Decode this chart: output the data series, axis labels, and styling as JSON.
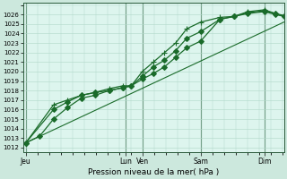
{
  "title": "",
  "xlabel": "Pression niveau de la mer( hPa )",
  "ylabel": "",
  "bg_color": "#cce8dd",
  "plot_bg_color": "#ddf5ee",
  "grid_color": "#b0d8c8",
  "line_color": "#1a6b2a",
  "vline_color": "#2a5a3a",
  "ylim_min": 1011.5,
  "ylim_max": 1027.2,
  "yticks": [
    1012,
    1013,
    1014,
    1015,
    1016,
    1017,
    1018,
    1019,
    1020,
    1021,
    1022,
    1023,
    1024,
    1025,
    1026
  ],
  "xtick_labels": [
    "Jeu",
    "Lun",
    "Ven",
    "Sam",
    "Dim"
  ],
  "xtick_positions": [
    0.0,
    3.6,
    4.2,
    6.3,
    8.6
  ],
  "xlim_min": -0.1,
  "xlim_max": 9.3,
  "series": [
    {
      "x": [
        0.0,
        0.5,
        1.0,
        1.5,
        2.0,
        2.5,
        3.0,
        3.5,
        3.8,
        4.2,
        4.6,
        5.0,
        5.4,
        5.8,
        6.3,
        7.0,
        7.5,
        8.0,
        8.6,
        9.0,
        9.3
      ],
      "y": [
        1012.5,
        1013.2,
        1015.0,
        1016.2,
        1017.2,
        1017.5,
        1018.0,
        1018.3,
        1018.5,
        1019.2,
        1019.8,
        1020.5,
        1021.5,
        1022.5,
        1023.2,
        1025.5,
        1025.8,
        1026.1,
        1026.3,
        1026.0,
        1025.8
      ],
      "marker": "D",
      "markersize": 3,
      "lw": 0.9,
      "markevery": 1
    },
    {
      "x": [
        0.0,
        1.0,
        1.5,
        2.0,
        2.5,
        3.0,
        3.5,
        3.8,
        4.2,
        4.6,
        5.0,
        5.4,
        5.8,
        6.3,
        7.0,
        7.5,
        8.0,
        8.6,
        9.0,
        9.3
      ],
      "y": [
        1012.5,
        1016.0,
        1016.8,
        1017.5,
        1017.8,
        1018.0,
        1018.3,
        1018.5,
        1019.5,
        1020.5,
        1021.2,
        1022.2,
        1023.5,
        1024.2,
        1025.5,
        1025.8,
        1026.2,
        1026.4,
        1026.1,
        1025.8
      ],
      "marker": "D",
      "markersize": 3,
      "lw": 0.9,
      "markevery": 1
    },
    {
      "x": [
        0.0,
        1.0,
        1.5,
        2.0,
        2.5,
        3.0,
        3.5,
        3.8,
        4.2,
        4.6,
        5.0,
        5.4,
        5.8,
        6.3,
        7.0,
        7.5,
        8.0,
        8.6,
        9.0,
        9.3
      ],
      "y": [
        1012.5,
        1016.5,
        1017.0,
        1017.5,
        1017.8,
        1018.2,
        1018.5,
        1018.5,
        1020.0,
        1021.0,
        1022.0,
        1023.0,
        1024.5,
        1025.2,
        1025.7,
        1025.8,
        1026.3,
        1026.5,
        1026.1,
        1025.9
      ],
      "marker": "+",
      "markersize": 5,
      "lw": 0.9,
      "markevery": 1
    },
    {
      "x": [
        0.0,
        9.3
      ],
      "y": [
        1012.5,
        1025.2
      ],
      "marker": "None",
      "markersize": 0,
      "lw": 0.8,
      "markevery": 1
    }
  ],
  "figsize": [
    3.2,
    2.0
  ],
  "dpi": 100
}
